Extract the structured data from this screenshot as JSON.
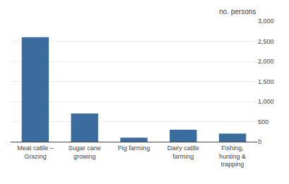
{
  "chart_data": {
    "type": "bar",
    "ylabel": "no. persons",
    "categories": [
      "Meat cattle –\nGrazing",
      "Sugar cane\ngrowing",
      "Pig farming",
      "Dairy cattle\nfarming",
      "Fishing,\nhunting &\ntrapping"
    ],
    "values": [
      2600,
      700,
      100,
      300,
      200
    ],
    "color": "#3B6C9E",
    "ylim": [
      0,
      3000
    ],
    "yticks": [
      0,
      500,
      {
        "value": 1000,
        "label": "1,000"
      },
      {
        "value": 1500,
        "label": "1,500"
      },
      {
        "value": 2000,
        "label": "2,000"
      },
      {
        "value": 2500,
        "label": "2,500"
      },
      {
        "value": 3000,
        "label": "3,000"
      }
    ],
    "grid": true
  }
}
